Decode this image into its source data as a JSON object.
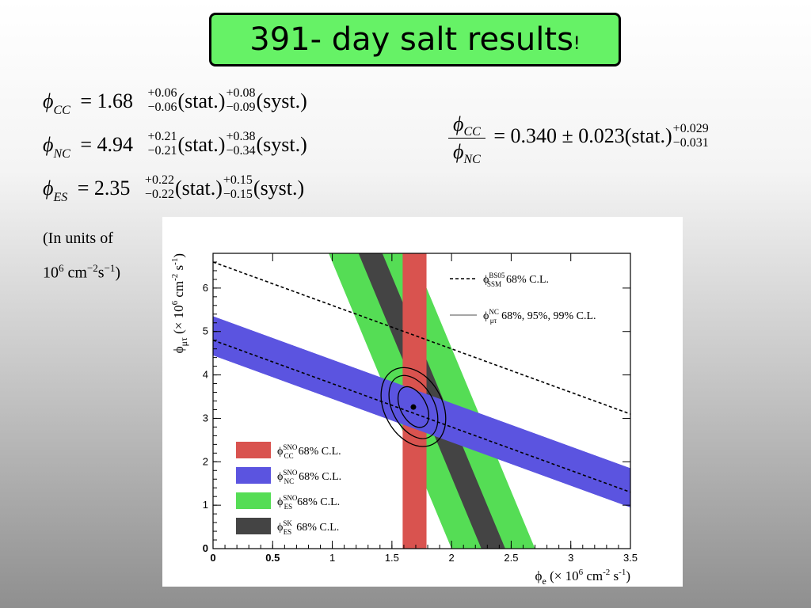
{
  "slide": {
    "title": "391- day salt results",
    "title_suffix": "!",
    "units_line1": "(In units of",
    "units_base": "10",
    "units_exp6": "6",
    "units_cm": " cm",
    "units_exp_m2": "−2",
    "units_s": "s",
    "units_exp_m1": "−1",
    "units_close": ")"
  },
  "equations": [
    {
      "sym": "ϕ",
      "sub": "CC",
      "value": "= 1.68",
      "stat_plus": "+0.06",
      "stat_minus": "−0.06",
      "stat_label": "(stat.)",
      "syst_plus": "+0.08",
      "syst_minus": "−0.09",
      "syst_label": "(syst.)"
    },
    {
      "sym": "ϕ",
      "sub": "NC",
      "value": "= 4.94",
      "stat_plus": "+0.21",
      "stat_minus": "−0.21",
      "stat_label": "(stat.)",
      "syst_plus": "+0.38",
      "syst_minus": "−0.34",
      "syst_label": "(syst.)"
    },
    {
      "sym": "ϕ",
      "sub": "ES",
      "value": "= 2.35",
      "stat_plus": "+0.22",
      "stat_minus": "−0.22",
      "stat_label": "(stat.)",
      "syst_plus": "+0.15",
      "syst_minus": "−0.15",
      "syst_label": "(syst.)"
    }
  ],
  "ratio": {
    "num_sym": "ϕ",
    "num_sub": "CC",
    "den_sym": "ϕ",
    "den_sub": "NC",
    "value": "= 0.340 ± 0.023(stat.)",
    "syst_plus": "+0.029",
    "syst_minus": "−0.031"
  },
  "chart_data": {
    "type": "band-overlay",
    "xlim": [
      0,
      3.5
    ],
    "ylim": [
      0,
      6.8
    ],
    "x_ticks": [
      "0",
      "0.5",
      "1",
      "1.5",
      "2",
      "2.5",
      "3",
      "3.5"
    ],
    "y_ticks": [
      "0",
      "1",
      "2",
      "3",
      "4",
      "5",
      "6"
    ],
    "xlabel": {
      "sym": "ϕ",
      "sub": "e",
      "rest": " (× 10",
      "exp": "6",
      "unit": " cm",
      "exp2": "-2",
      "unit2": " s",
      "exp3": "-1",
      "close": ")"
    },
    "ylabel": {
      "sym": "ϕ",
      "sub": "μτ",
      "rest": " (× 10",
      "exp": "6",
      "unit": " cm",
      "exp2": "-2",
      "unit2": " s",
      "exp3": "-1",
      "close": ")"
    },
    "best_fit": {
      "x": 1.68,
      "y": 3.26
    },
    "bands": [
      {
        "name": "CC",
        "kind": "vertical",
        "color": "#d9534f",
        "x_low": 1.59,
        "x_high": 1.79
      },
      {
        "name": "NC",
        "kind": "diagonal",
        "color": "#5b54e0",
        "sum_low": 4.45,
        "sum_high": 5.35
      },
      {
        "name": "ES",
        "kind": "diagonal",
        "color": "#55dd55",
        "slope_inv": 6.6,
        "center": 2.35,
        "half_width_x": 0.35
      },
      {
        "name": "ES SK",
        "kind": "diagonal",
        "color": "#444444",
        "slope_inv": 6.6,
        "center": 2.35,
        "half_width_x": 0.1
      }
    ],
    "ssm_lines": [
      {
        "name": "BS05 SSM",
        "points": [
          [
            0,
            6.6
          ],
          [
            3.5,
            3.1
          ]
        ],
        "style": "dashed"
      },
      {
        "name": "SSM NC",
        "points": [
          [
            0,
            4.8
          ],
          [
            3.5,
            1.3
          ]
        ],
        "style": "dashed"
      }
    ],
    "contours": [
      {
        "cl": "68%",
        "rx": 0.08,
        "ry": 0.55,
        "angle": -28
      },
      {
        "cl": "95%",
        "rx": 0.13,
        "ry": 0.85,
        "angle": -28
      },
      {
        "cl": "99%",
        "rx": 0.18,
        "ry": 1.05,
        "angle": -28
      }
    ],
    "legend_top": [
      {
        "style": "dashed",
        "sym": "ϕ",
        "sup": "BS05",
        "sub": "SSM",
        "text": "68% C.L."
      },
      {
        "style": "solid",
        "sym": "ϕ",
        "sup": "NC",
        "sub": "μτ",
        "text": "68%, 95%, 99% C.L."
      }
    ],
    "legend_bottom": [
      {
        "color": "#d9534f",
        "sym": "ϕ",
        "sup": "SNO",
        "sub": "CC",
        "text": "68% C.L."
      },
      {
        "color": "#5b54e0",
        "sym": "ϕ",
        "sup": "SNO",
        "sub": "NC",
        "text": "68% C.L."
      },
      {
        "color": "#55dd55",
        "sym": "ϕ",
        "sup": "SNO",
        "sub": "ES",
        "text": "68% C.L."
      },
      {
        "color": "#444444",
        "sym": "ϕ",
        "sup": "SK",
        "sub": "ES",
        "text": "68% C.L."
      }
    ]
  }
}
